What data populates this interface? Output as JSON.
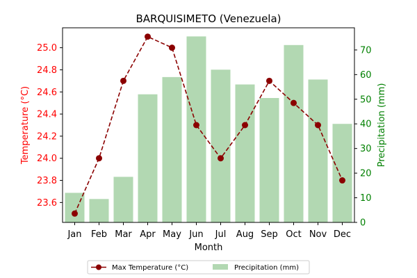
{
  "chart_data": {
    "type": "bar+line",
    "title": "BARQUISIMETO (Venezuela)",
    "xlabel": "Month",
    "ylabel_left": "Temperature (°C)",
    "ylabel_right": "Precipitation (mm)",
    "categories": [
      "Jan",
      "Feb",
      "Mar",
      "Apr",
      "May",
      "Jun",
      "Jul",
      "Aug",
      "Sep",
      "Oct",
      "Nov",
      "Dec"
    ],
    "ylim_left": [
      23.42,
      25.18
    ],
    "yticks_left": [
      "23.6",
      "23.8",
      "24.0",
      "24.2",
      "24.4",
      "24.6",
      "24.8",
      "25.0"
    ],
    "ylim_right": [
      0,
      79
    ],
    "yticks_right": [
      "0",
      "10",
      "20",
      "30",
      "40",
      "50",
      "60",
      "70"
    ],
    "grid": false,
    "legend_position": "bottom-center",
    "series": [
      {
        "name": "Max Temperature (°C)",
        "type": "line",
        "axis": "left",
        "color": "#8b0000",
        "values": [
          23.5,
          24.0,
          24.7,
          25.1,
          25.0,
          24.3,
          24.0,
          24.3,
          24.7,
          24.5,
          24.3,
          23.8
        ]
      },
      {
        "name": "Precipitation (mm)",
        "type": "bar",
        "axis": "right",
        "color": "#b2d8b2",
        "values": [
          12,
          9.5,
          18.5,
          52,
          59,
          75.5,
          62,
          56,
          50.5,
          72,
          58,
          40
        ]
      }
    ],
    "left_axis_color": "#ff0000",
    "right_axis_color": "#008000"
  }
}
